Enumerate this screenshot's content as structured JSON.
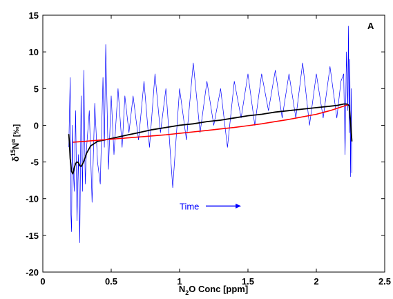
{
  "chart_data": {
    "type": "line",
    "title": "",
    "panel_label": "A",
    "xlabel": {
      "prefix": "N",
      "sub": "2",
      "suffix": "O Conc [ppm]"
    },
    "ylabel": {
      "delta": "δ",
      "sup": "15",
      "main": "N",
      "alpha": "α",
      "unit": " [‰]"
    },
    "xlim": [
      0,
      2.5
    ],
    "ylim": [
      -20,
      15
    ],
    "xticks": [
      "0",
      "0.5",
      "1",
      "1.5",
      "2",
      "2.5"
    ],
    "yticks": [
      "-20",
      "-15",
      "-10",
      "-5",
      "0",
      "5",
      "10",
      "15"
    ],
    "grid": false,
    "annotation": {
      "text": "Time",
      "arrow": true,
      "x": 1.0,
      "y": -11,
      "x_end": 1.45,
      "color": "#0000ff"
    },
    "colors": {
      "noisy": "#0000ff",
      "smoothed": "#000000",
      "fit": "#ff0000"
    },
    "series": [
      {
        "style": "noisy",
        "color": "#0000ff",
        "x": [
          0.19,
          0.2,
          0.205,
          0.21,
          0.215,
          0.22,
          0.23,
          0.24,
          0.25,
          0.26,
          0.27,
          0.28,
          0.29,
          0.3,
          0.31,
          0.32,
          0.34,
          0.36,
          0.38,
          0.4,
          0.42,
          0.44,
          0.45,
          0.46,
          0.48,
          0.5,
          0.52,
          0.55,
          0.58,
          0.6,
          0.63,
          0.66,
          0.7,
          0.74,
          0.78,
          0.82,
          0.86,
          0.9,
          0.95,
          1.0,
          1.05,
          1.1,
          1.15,
          1.2,
          1.25,
          1.3,
          1.35,
          1.4,
          1.45,
          1.5,
          1.55,
          1.6,
          1.65,
          1.7,
          1.75,
          1.8,
          1.85,
          1.9,
          1.95,
          2.0,
          2.05,
          2.1,
          2.15,
          2.18,
          2.2,
          2.21,
          2.22,
          2.23,
          2.235,
          2.24,
          2.245,
          2.25,
          2.255,
          2.26
        ],
        "y": [
          -3,
          6.5,
          -12,
          -14.5,
          0,
          -5,
          -9,
          2,
          -13,
          -4,
          -16,
          4,
          -9,
          7.5,
          -8,
          -3,
          2,
          -10.5,
          3,
          -5,
          -8,
          6.5,
          -3,
          11,
          -6,
          4,
          -4,
          5,
          -3,
          4,
          -1,
          4,
          -2,
          6,
          -3,
          7,
          -1,
          5,
          -8.5,
          5,
          -2,
          8.5,
          -1,
          6,
          0,
          5,
          -3,
          6,
          1,
          7,
          0,
          7,
          2,
          7.5,
          1,
          7,
          1,
          8.5,
          0,
          7,
          1,
          8,
          1,
          6,
          7,
          -4,
          10,
          2,
          13.5,
          -1,
          9,
          -7,
          5,
          -6.5
        ]
      },
      {
        "style": "smoothed",
        "color": "#000000",
        "x": [
          0.19,
          0.195,
          0.2,
          0.21,
          0.22,
          0.23,
          0.24,
          0.25,
          0.26,
          0.27,
          0.28,
          0.29,
          0.3,
          0.32,
          0.35,
          0.4,
          0.45,
          0.5,
          0.6,
          0.7,
          0.8,
          0.9,
          1.0,
          1.1,
          1.2,
          1.3,
          1.4,
          1.5,
          1.6,
          1.7,
          1.8,
          1.9,
          2.0,
          2.1,
          2.15,
          2.2,
          2.22,
          2.24,
          2.25,
          2.26
        ],
        "y": [
          -1.2,
          -2.5,
          -4.5,
          -6.3,
          -6.6,
          -5.8,
          -5.2,
          -5.0,
          -5.1,
          -5.5,
          -5.6,
          -5.3,
          -4.9,
          -3.8,
          -2.8,
          -2.2,
          -2.0,
          -1.8,
          -1.4,
          -1.0,
          -0.6,
          -0.3,
          0.0,
          0.2,
          0.5,
          0.7,
          1.0,
          1.3,
          1.5,
          1.8,
          2.0,
          2.2,
          2.4,
          2.6,
          2.7,
          2.9,
          2.9,
          2.7,
          0.5,
          -2.2
        ]
      },
      {
        "style": "fit",
        "color": "#ff0000",
        "x": [
          0.22,
          0.3,
          0.4,
          0.5,
          0.6,
          0.7,
          0.8,
          0.9,
          1.0,
          1.1,
          1.2,
          1.3,
          1.4,
          1.5,
          1.6,
          1.7,
          1.8,
          1.9,
          2.0,
          2.1,
          2.15,
          2.2,
          2.23
        ],
        "y": [
          -2.3,
          -2.2,
          -2.05,
          -1.9,
          -1.75,
          -1.6,
          -1.45,
          -1.3,
          -1.1,
          -0.9,
          -0.7,
          -0.5,
          -0.3,
          -0.05,
          0.2,
          0.5,
          0.8,
          1.15,
          1.5,
          2.0,
          2.3,
          2.6,
          2.8
        ]
      }
    ]
  }
}
